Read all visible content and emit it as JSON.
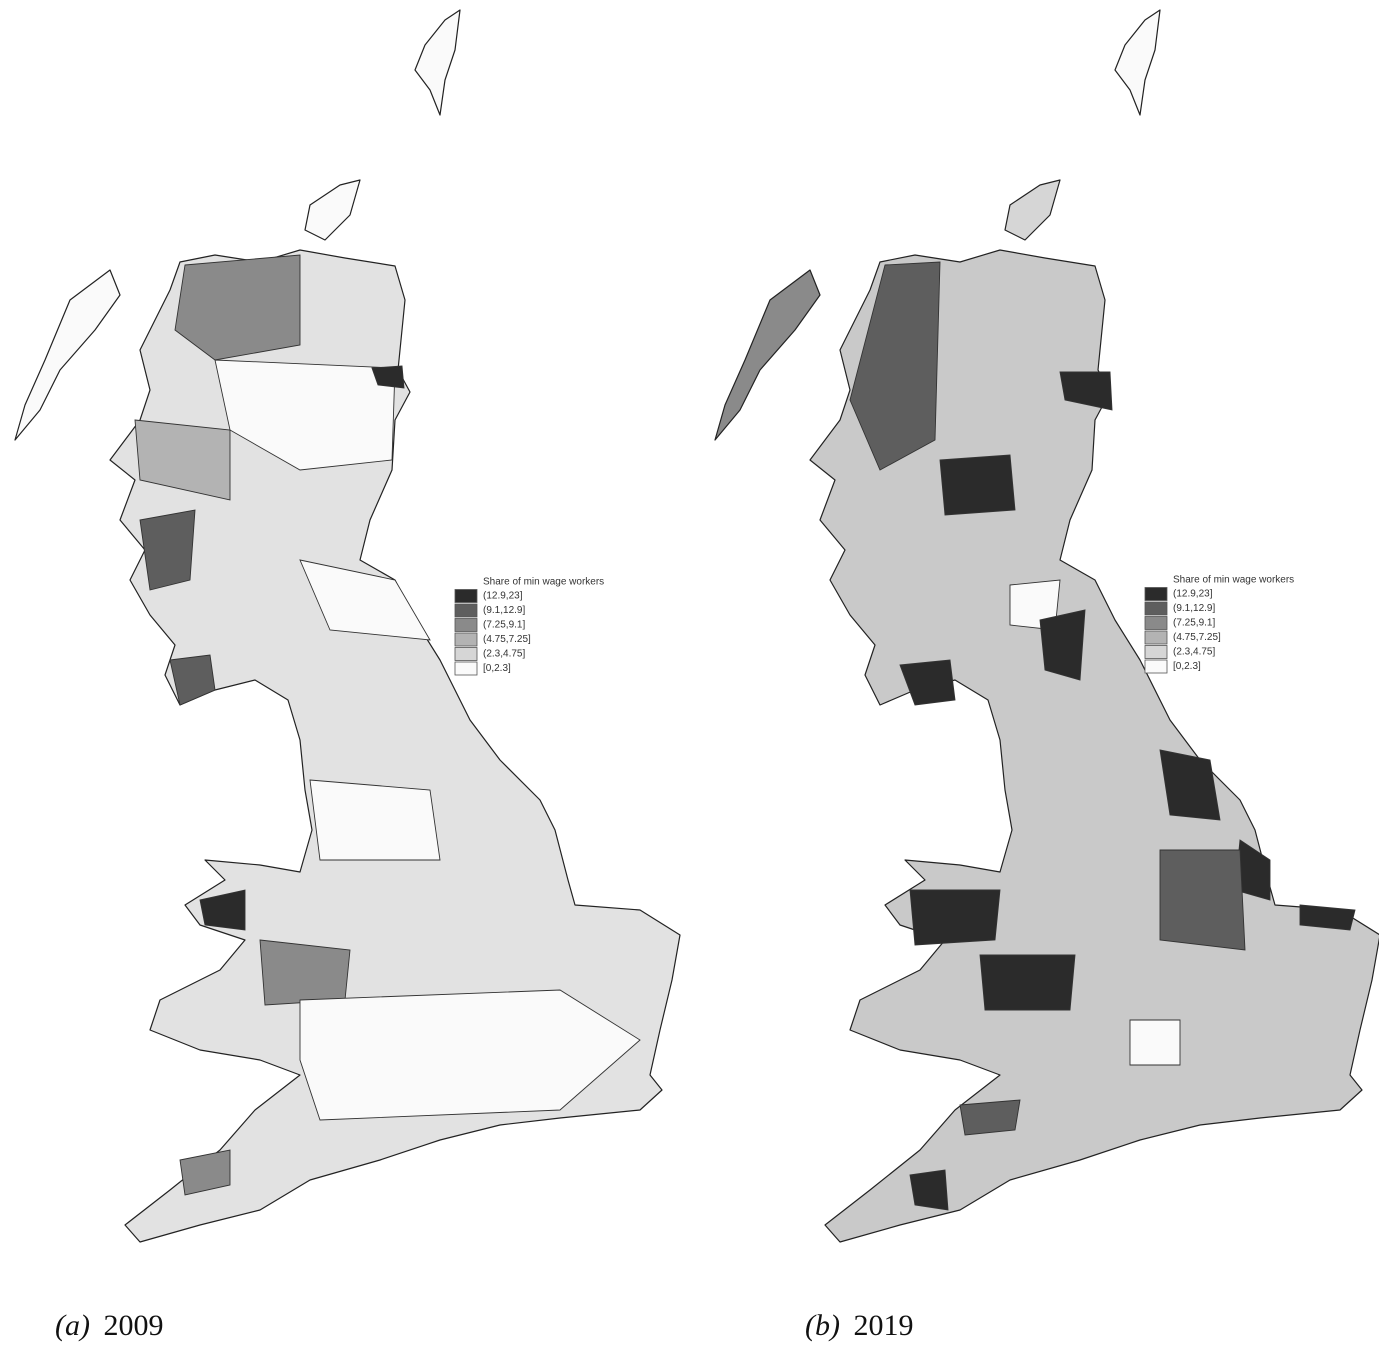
{
  "maps": [
    {
      "legend": {
        "title": "Share of min wage workers",
        "items": [
          {
            "label": "(12.9,23]",
            "color": "#2b2b2b"
          },
          {
            "label": "(9.1,12.9]",
            "color": "#5e5e5e"
          },
          {
            "label": "(7.25,9.1]",
            "color": "#8a8a8a"
          },
          {
            "label": "(4.75,7.25]",
            "color": "#b3b3b3"
          },
          {
            "label": "(2.3,4.75]",
            "color": "#d6d6d6"
          },
          {
            "label": "[0,2.3]",
            "color": "#fafafa"
          }
        ]
      },
      "caption": {
        "label": "(a)",
        "year": "2009"
      }
    },
    {
      "legend": {
        "title": "Share of min wage workers",
        "items": [
          {
            "label": "(12.9,23]",
            "color": "#2b2b2b"
          },
          {
            "label": "(9.1,12.9]",
            "color": "#5e5e5e"
          },
          {
            "label": "(7.25,9.1]",
            "color": "#8a8a8a"
          },
          {
            "label": "(4.75,7.25]",
            "color": "#b3b3b3"
          },
          {
            "label": "(2.3,4.75]",
            "color": "#d6d6d6"
          },
          {
            "label": "[0,2.3]",
            "color": "#fafafa"
          }
        ]
      },
      "caption": {
        "label": "(b)",
        "year": "2019"
      }
    }
  ]
}
